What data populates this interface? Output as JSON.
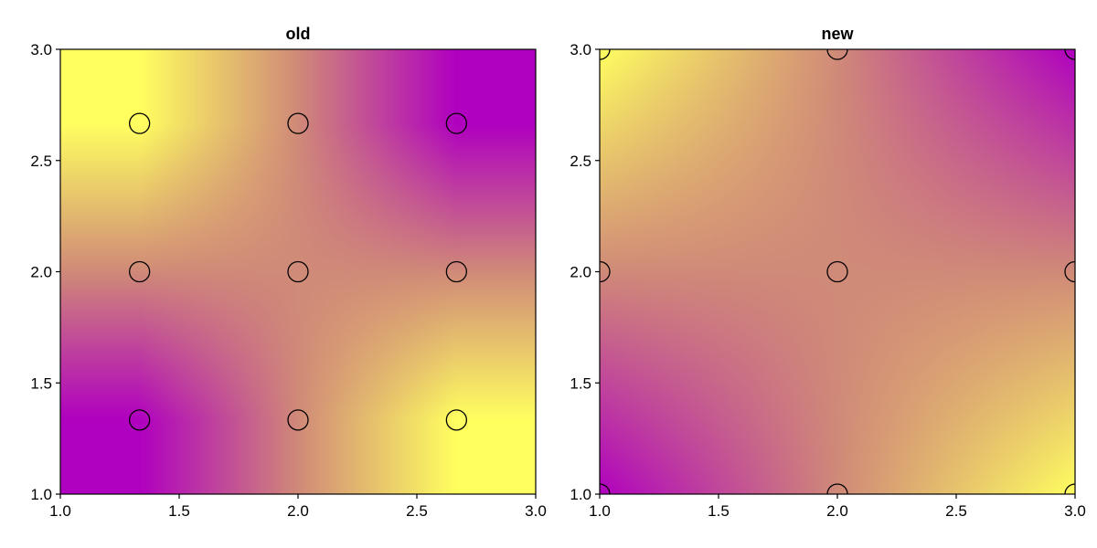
{
  "chart_data": [
    {
      "type": "heatmap",
      "title": "old",
      "xlabel": "",
      "ylabel": "",
      "xlim": [
        1.0,
        3.0
      ],
      "ylim": [
        1.0,
        3.0
      ],
      "xticks": [
        "1.0",
        "1.5",
        "2.0",
        "2.5",
        "3.0"
      ],
      "yticks": [
        "1.0",
        "1.5",
        "2.0",
        "2.5",
        "3.0"
      ],
      "grid": false,
      "colormap": [
        "#b000c0",
        "#d08a78",
        "#ffff60"
      ],
      "grid_x": [
        1.3333,
        2.0,
        2.6667
      ],
      "grid_y": [
        1.3333,
        2.0,
        2.6667
      ],
      "values_by_row_from_bottom": [
        [
          0.0,
          0.5,
          1.0
        ],
        [
          0.5,
          0.5,
          0.5
        ],
        [
          1.0,
          0.5,
          0.0
        ]
      ],
      "points": [
        {
          "x": 1.3333,
          "y": 1.3333
        },
        {
          "x": 2.0,
          "y": 1.3333
        },
        {
          "x": 2.6667,
          "y": 1.3333
        },
        {
          "x": 1.3333,
          "y": 2.0
        },
        {
          "x": 2.0,
          "y": 2.0
        },
        {
          "x": 2.6667,
          "y": 2.0
        },
        {
          "x": 1.3333,
          "y": 2.6667
        },
        {
          "x": 2.0,
          "y": 2.6667
        },
        {
          "x": 2.6667,
          "y": 2.6667
        }
      ]
    },
    {
      "type": "heatmap",
      "title": "new",
      "xlabel": "",
      "ylabel": "",
      "xlim": [
        1.0,
        3.0
      ],
      "ylim": [
        1.0,
        3.0
      ],
      "xticks": [
        "1.0",
        "1.5",
        "2.0",
        "2.5",
        "3.0"
      ],
      "yticks": [
        "1.0",
        "1.5",
        "2.0",
        "2.5",
        "3.0"
      ],
      "grid": false,
      "colormap": [
        "#b000c0",
        "#d08a78",
        "#ffff60"
      ],
      "grid_x": [
        1.0,
        2.0,
        3.0
      ],
      "grid_y": [
        1.0,
        2.0,
        3.0
      ],
      "values_by_row_from_bottom": [
        [
          0.0,
          0.5,
          1.0
        ],
        [
          0.5,
          0.5,
          0.5
        ],
        [
          1.0,
          0.5,
          0.0
        ]
      ],
      "points": [
        {
          "x": 1.0,
          "y": 1.0
        },
        {
          "x": 2.0,
          "y": 1.0
        },
        {
          "x": 3.0,
          "y": 1.0
        },
        {
          "x": 1.0,
          "y": 2.0
        },
        {
          "x": 2.0,
          "y": 2.0
        },
        {
          "x": 3.0,
          "y": 2.0
        },
        {
          "x": 1.0,
          "y": 3.0
        },
        {
          "x": 2.0,
          "y": 3.0
        },
        {
          "x": 3.0,
          "y": 3.0
        }
      ]
    }
  ]
}
